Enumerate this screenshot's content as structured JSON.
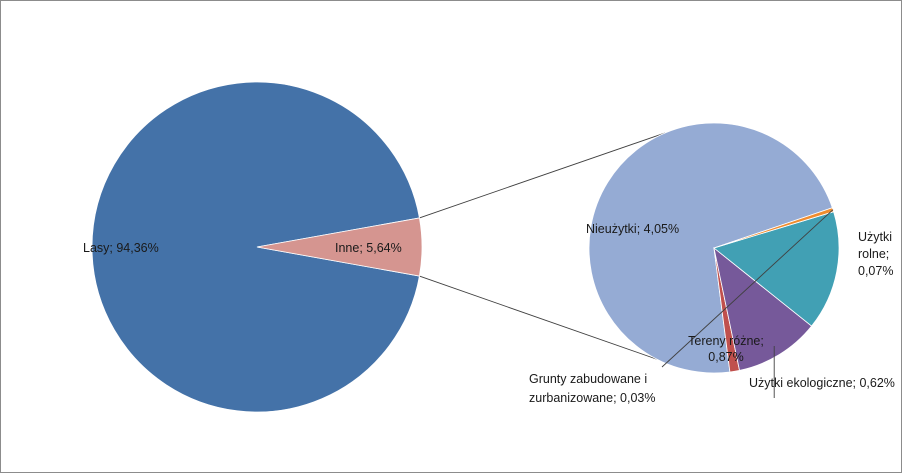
{
  "chart_data": {
    "type": "pie",
    "subtype": "pie-of-pie",
    "main": {
      "slices": [
        {
          "label": "Lasy",
          "value": 94.36,
          "display": "Lasy; 94,36%",
          "color": "#4472a8"
        },
        {
          "label": "Inne",
          "value": 5.64,
          "display": "Inne; 5,64%",
          "color": "#d59590"
        }
      ]
    },
    "secondary": {
      "breakdown_of": "Inne",
      "slices": [
        {
          "label": "Nieużytki",
          "value": 4.05,
          "display": "Nieużytki; 4,05%",
          "color": "#95abd4"
        },
        {
          "label": "Użytki rolne",
          "value": 0.07,
          "display": "Użytki rolne; 0,07%",
          "display_lines": [
            "Użytki",
            "rolne;",
            "0,07%"
          ],
          "color": "#c0504d"
        },
        {
          "label": "Użytki ekologiczne",
          "value": 0.62,
          "display": "Użytki ekologiczne; 0,62%",
          "color": "#76599a"
        },
        {
          "label": "Tereny różne",
          "value": 0.87,
          "display": "Tereny różne; 0,87%",
          "display_lines": [
            "Tereny różne;",
            "0,87%"
          ],
          "color": "#41a0b4"
        },
        {
          "label": "Grunty zabudowane i zurbanizowane",
          "value": 0.03,
          "display": "Grunty zabudowane i zurbanizowane; 0,03%",
          "display_lines": [
            "Grunty zabudowane i",
            "zurbanizowane; 0,03%"
          ],
          "color": "#f08c2e"
        }
      ]
    },
    "legend": "none",
    "grid": false
  }
}
